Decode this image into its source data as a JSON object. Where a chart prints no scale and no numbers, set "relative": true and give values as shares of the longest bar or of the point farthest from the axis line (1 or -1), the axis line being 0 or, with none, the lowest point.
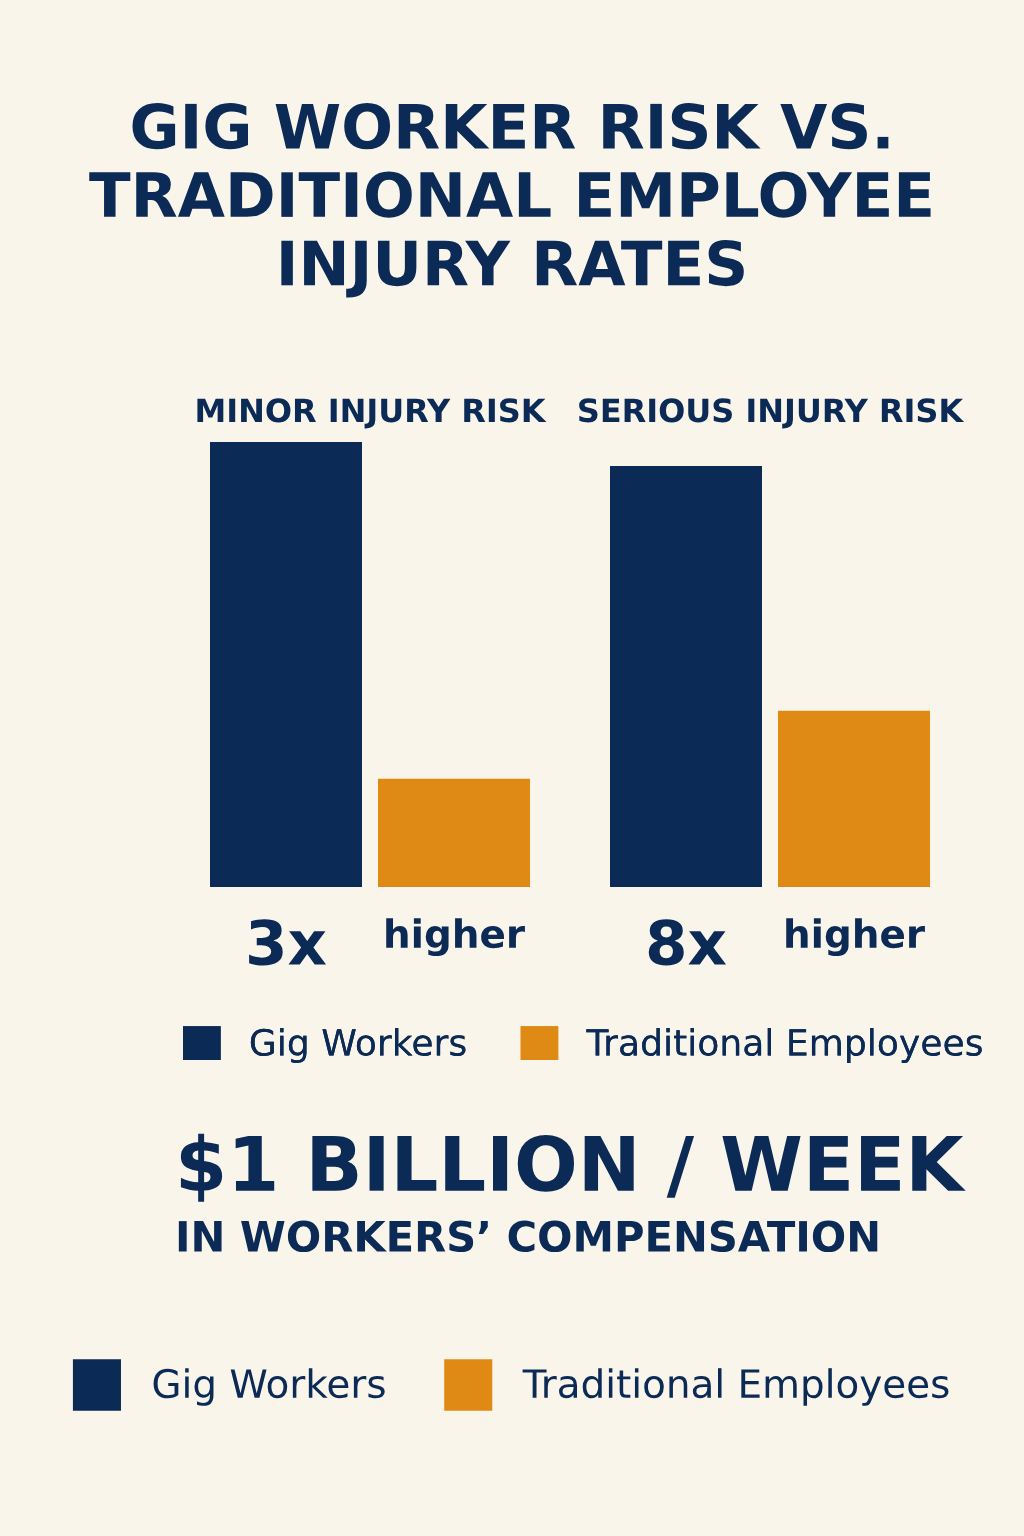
{
  "chart_data": {
    "type": "bar",
    "title": "GIG WORKER RISK VS. TRADITIONAL EMPLOYEE INJURY RATES",
    "categories": [
      "MINOR INJURY RISK",
      "SERIOUS INJURY RISK"
    ],
    "series": [
      {
        "name": "Gig Workers",
        "color": "#0b2a55",
        "values": [
          1,
          0.946
        ]
      },
      {
        "name": "Traditional Employees",
        "color": "#e08a16",
        "values": [
          0.243,
          0.396
        ]
      }
    ],
    "relative": true,
    "annotations": [
      "3x",
      "higher",
      "8x",
      "higher",
      "$1 BILLION / WEEK",
      "IN WORKERS’ COMPENSATION"
    ],
    "legend": "bottom"
  }
}
